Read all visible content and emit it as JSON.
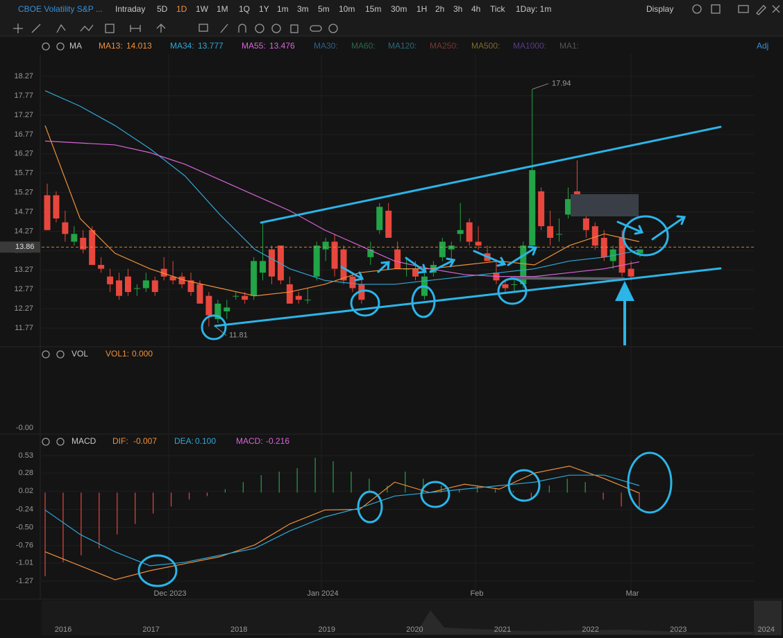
{
  "toolbar": {
    "symbol": "CBOE Volatility S&P ...",
    "periods": [
      "Intraday",
      "5D",
      "1D",
      "1W",
      "1M",
      "1Q",
      "1Y",
      "1m",
      "3m",
      "5m",
      "10m",
      "15m",
      "30m",
      "1H",
      "2h",
      "3h",
      "4h",
      "Tick"
    ],
    "active_period": "1D",
    "interval": "1Day: 1m",
    "display": "Display"
  },
  "ma_legend": {
    "label": "MA",
    "items": [
      {
        "name": "MA30:",
        "color": "#2d5f8a"
      },
      {
        "name": "MA60:",
        "color": "#2a6a4a"
      },
      {
        "name": "MA120:",
        "color": "#2a6a7a"
      },
      {
        "name": "MA250:",
        "color": "#7a3535"
      },
      {
        "name": "MA500:",
        "color": "#7a6a30"
      },
      {
        "name": "MA1000:",
        "color": "#5a3a8a"
      },
      {
        "name": "MA1:",
        "color": "#555555"
      }
    ],
    "adj": "Adj"
  },
  "vol_legend": {
    "label": "VOL",
    "item": "VOL1:",
    "value": "0.000",
    "axis_label": "-0.00"
  },
  "macd_legend": {
    "label": "MACD"
  },
  "x_labels": [
    "Dec 2023",
    "Jan 2024",
    "Feb",
    "Mar"
  ],
  "navigator_years": [
    "2016",
    "2017",
    "2018",
    "2019",
    "2020",
    "2021",
    "2022",
    "2023",
    "2024"
  ],
  "chart_data": [
    {
      "type": "candlestick",
      "ylim": [
        11.34,
        18.81
      ],
      "yticks": [
        18.27,
        17.77,
        17.27,
        16.77,
        16.27,
        15.77,
        15.27,
        14.77,
        14.27,
        13.77,
        13.27,
        12.77,
        12.27,
        11.77
      ],
      "last_price": 13.86,
      "up_color": "#22a447",
      "down_color": "#e8473d",
      "high_label": 17.94,
      "low_label": 11.81,
      "candles": [
        [
          15.2,
          15.5,
          14.3,
          14.3
        ],
        [
          15.2,
          15.3,
          14.5,
          14.6
        ],
        [
          14.5,
          14.8,
          14.0,
          14.2
        ],
        [
          14.0,
          14.4,
          13.9,
          14.2
        ],
        [
          14.1,
          14.3,
          13.7,
          13.8
        ],
        [
          14.3,
          14.4,
          13.4,
          13.4
        ],
        [
          13.4,
          13.6,
          13.2,
          13.3
        ],
        [
          13.1,
          13.3,
          12.7,
          12.9
        ],
        [
          13.0,
          13.2,
          12.5,
          12.6
        ],
        [
          13.1,
          13.3,
          12.6,
          12.7
        ],
        [
          12.8,
          12.9,
          12.6,
          12.8
        ],
        [
          12.8,
          13.2,
          12.7,
          13.0
        ],
        [
          13.0,
          13.1,
          12.6,
          12.7
        ],
        [
          13.3,
          13.6,
          13.0,
          13.1
        ],
        [
          13.1,
          13.5,
          12.9,
          13.0
        ],
        [
          13.1,
          13.2,
          12.8,
          12.9
        ],
        [
          13.0,
          13.2,
          12.6,
          12.7
        ],
        [
          12.9,
          13.0,
          12.4,
          12.4
        ],
        [
          12.6,
          12.7,
          11.81,
          12.1
        ],
        [
          12.0,
          12.5,
          11.9,
          12.4
        ],
        [
          12.2,
          12.5,
          12.0,
          12.3
        ],
        [
          12.6,
          12.7,
          12.5,
          12.6
        ],
        [
          12.6,
          12.7,
          12.4,
          12.5
        ],
        [
          12.6,
          13.6,
          12.5,
          13.5
        ],
        [
          13.2,
          14.5,
          13.0,
          13.5
        ],
        [
          13.8,
          13.9,
          12.9,
          13.1
        ],
        [
          13.9,
          13.9,
          12.9,
          13.0
        ],
        [
          12.9,
          13.1,
          12.4,
          12.4
        ],
        [
          12.6,
          12.7,
          12.4,
          12.5
        ],
        [
          12.5,
          12.8,
          12.4,
          12.5
        ],
        [
          13.1,
          14.0,
          13.0,
          13.9
        ],
        [
          13.8,
          14.1,
          13.5,
          14.0
        ],
        [
          14.0,
          14.2,
          13.1,
          13.3
        ],
        [
          13.8,
          13.9,
          12.9,
          13.0
        ],
        [
          13.1,
          13.2,
          12.7,
          12.8
        ],
        [
          12.9,
          13.1,
          12.4,
          12.5
        ],
        [
          13.6,
          14.0,
          13.4,
          13.8
        ],
        [
          14.3,
          15.0,
          14.2,
          14.9
        ],
        [
          14.8,
          15.0,
          14.1,
          14.1
        ],
        [
          13.8,
          14.0,
          13.3,
          13.3
        ],
        [
          13.3,
          13.6,
          13.1,
          13.3
        ],
        [
          13.3,
          13.5,
          13.0,
          13.1
        ],
        [
          12.6,
          13.2,
          12.5,
          13.1
        ],
        [
          13.2,
          13.5,
          13.1,
          13.4
        ],
        [
          13.6,
          14.1,
          13.5,
          14.0
        ],
        [
          13.8,
          14.0,
          13.5,
          13.9
        ],
        [
          14.2,
          15.0,
          14.0,
          14.3
        ],
        [
          14.5,
          14.6,
          13.9,
          14.0
        ],
        [
          14.0,
          14.4,
          13.8,
          13.9
        ],
        [
          13.7,
          13.9,
          13.5,
          13.5
        ],
        [
          13.2,
          13.5,
          12.9,
          13.0
        ],
        [
          12.9,
          13.0,
          12.7,
          12.8
        ],
        [
          12.9,
          13.0,
          12.7,
          12.9
        ],
        [
          12.9,
          14.0,
          12.8,
          13.9
        ],
        [
          13.9,
          17.94,
          13.8,
          15.85
        ],
        [
          15.3,
          15.4,
          14.3,
          14.4
        ],
        [
          14.4,
          14.8,
          13.9,
          14.1
        ],
        [
          14.2,
          14.6,
          14.0,
          14.2
        ],
        [
          14.7,
          15.4,
          14.6,
          15.1
        ],
        [
          15.3,
          16.1,
          14.9,
          15.0
        ],
        [
          14.6,
          14.7,
          14.1,
          14.3
        ],
        [
          14.4,
          14.5,
          13.8,
          13.9
        ],
        [
          14.1,
          14.3,
          13.5,
          13.6
        ],
        [
          13.5,
          13.9,
          13.3,
          13.8
        ],
        [
          14.1,
          14.3,
          13.1,
          13.2
        ],
        [
          13.3,
          13.5,
          13.0,
          13.1
        ],
        [
          13.7,
          13.8,
          13.6,
          13.8
        ]
      ],
      "series": [
        {
          "name": "MA13:",
          "value_label": "14.013",
          "color": "#f0913a",
          "values": [
            17.0,
            14.6,
            13.7,
            13.3,
            13.0,
            12.8,
            12.6,
            12.7,
            12.9,
            13.2,
            13.3,
            13.3,
            13.4,
            13.5,
            13.4,
            13.9,
            14.2,
            14.0
          ]
        },
        {
          "name": "MA34:",
          "value_label": "13.777",
          "color": "#2fa8d8",
          "values": [
            17.9,
            17.5,
            17.0,
            16.4,
            15.7,
            14.7,
            13.8,
            13.3,
            13.0,
            12.9,
            12.9,
            13.0,
            13.1,
            13.2,
            13.3,
            13.5,
            13.6,
            13.78
          ]
        },
        {
          "name": "MA55:",
          "value_label": "13.476",
          "color": "#d865d8",
          "values": [
            16.6,
            16.55,
            16.5,
            16.3,
            16.0,
            15.6,
            15.2,
            14.8,
            14.3,
            13.9,
            13.5,
            13.3,
            13.15,
            13.1,
            13.1,
            13.2,
            13.3,
            13.48
          ]
        }
      ]
    },
    {
      "type": "macd",
      "ylim": [
        -1.37,
        0.6
      ],
      "yticks": [
        0.53,
        0.28,
        0.02,
        -0.24,
        {
          "value": -0.5,
          "label": "-0.50"
        },
        -0.76,
        -1.01,
        -1.27
      ],
      "series": [
        {
          "name": "DIF:",
          "value_label": "-0.007",
          "color": "#f0913a",
          "values": [
            -0.85,
            -1.05,
            -1.25,
            -1.12,
            -1.02,
            -0.92,
            -0.75,
            -0.45,
            -0.25,
            -0.24,
            0.15,
            0.0,
            0.12,
            0.05,
            0.28,
            0.38,
            0.2,
            -0.007
          ]
        },
        {
          "name": "DEA:",
          "value_label": "0.100",
          "color": "#2fa8d8",
          "values": [
            -0.25,
            -0.6,
            -0.85,
            -1.05,
            -1.0,
            -0.9,
            -0.8,
            -0.55,
            -0.35,
            -0.22,
            -0.05,
            0.0,
            0.05,
            0.1,
            0.15,
            0.25,
            0.25,
            0.1
          ]
        }
      ],
      "histogram": {
        "name": "MACD:",
        "value_label": "-0.216",
        "color": "#d865d8",
        "up_color": "#22a447",
        "down_color": "#e8473d",
        "values": [
          -1.2,
          -1.0,
          -0.9,
          -0.8,
          -0.6,
          -0.45,
          -0.3,
          -0.2,
          -0.1,
          -0.05,
          0.05,
          0.15,
          0.25,
          0.3,
          0.35,
          0.5,
          0.45,
          0.3,
          0.2,
          0.1,
          0.3,
          0.2,
          0.1,
          0.05,
          0.1,
          0.05,
          0.02,
          -0.1,
          0.1,
          0.2,
          0.15,
          -0.1,
          -0.2,
          -0.216
        ]
      }
    }
  ]
}
